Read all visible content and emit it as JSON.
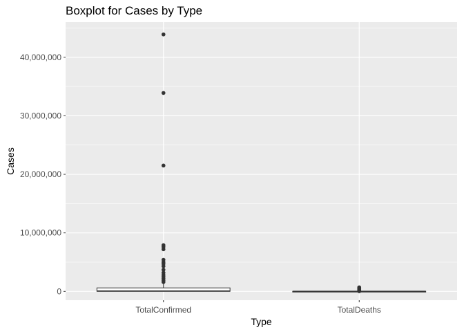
{
  "chart_data": {
    "type": "box",
    "title": "Boxplot for Cases by Type",
    "xlabel": "Type",
    "ylabel": "Cases",
    "categories": [
      "TotalConfirmed",
      "TotalDeaths"
    ],
    "ylim": [
      -1500000,
      46000000
    ],
    "yticks": [
      0,
      10000000,
      20000000,
      30000000,
      40000000
    ],
    "ytick_labels": [
      "0",
      "10,000,000",
      "20,000,000",
      "30,000,000",
      "40,000,000"
    ],
    "boxes": [
      {
        "category": "TotalConfirmed",
        "min": 0,
        "q1": 10000,
        "median": 70000,
        "q3": 600000,
        "max": 1500000,
        "outliers": [
          1600000,
          1900000,
          2200000,
          2500000,
          2800000,
          3200000,
          3700000,
          4300000,
          4700000,
          5000000,
          5400000,
          7200000,
          7600000,
          7900000,
          21500000,
          33900000,
          43900000
        ]
      },
      {
        "category": "TotalDeaths",
        "min": 0,
        "q1": 200,
        "median": 1000,
        "q3": 10000,
        "max": 25000,
        "outliers": [
          30000,
          60000,
          100000,
          130000,
          170000,
          230000,
          280000,
          340000,
          400000,
          470000,
          520000,
          600000,
          700000
        ]
      }
    ],
    "grid": true,
    "colors": {
      "panel": "#EBEBEB",
      "grid": "#FFFFFF",
      "box": "#333333",
      "text": "#4D4D4D"
    }
  }
}
